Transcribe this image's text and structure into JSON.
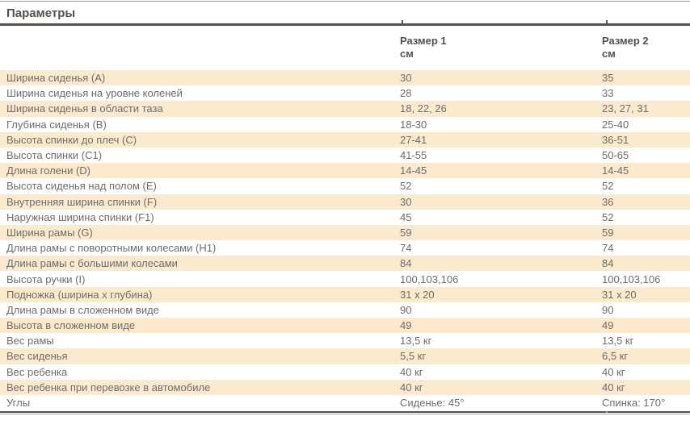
{
  "page": {
    "title": "Параметры"
  },
  "table": {
    "columns": [
      {
        "label": "Размер 1",
        "unit": "см"
      },
      {
        "label": "Размер 2",
        "unit": "см"
      }
    ],
    "rows": [
      {
        "label": "Ширина сиденья (A)",
        "size1": "30",
        "size2": "35"
      },
      {
        "label": "Ширина сиденья на уровне коленей",
        "size1": "28",
        "size2": "33"
      },
      {
        "label": "Ширина сиденья в области таза",
        "size1": "18, 22, 26",
        "size2": "23, 27, 31"
      },
      {
        "label": "Глубина сиденья (B)",
        "size1": "18-30",
        "size2": "25-40"
      },
      {
        "label": "Высота спинки до плеч (C)",
        "size1": "27-41",
        "size2": "36-51"
      },
      {
        "label": "Высота спинки (C1)",
        "size1": "41-55",
        "size2": "50-65"
      },
      {
        "label": "Длина голени (D)",
        "size1": "14-45",
        "size2": "14-45"
      },
      {
        "label": "Высота сиденья над полом (E)",
        "size1": "52",
        "size2": "52"
      },
      {
        "label": "Внутренняя ширина спинки (F)",
        "size1": "30",
        "size2": "36"
      },
      {
        "label": "Наружная ширина спинки (F1)",
        "size1": "45",
        "size2": "52"
      },
      {
        "label": "Ширина рамы (G)",
        "size1": "59",
        "size2": "59"
      },
      {
        "label": "Длина рамы с поворотными колесами (H1)",
        "size1": "74",
        "size2": "74"
      },
      {
        "label": "Длина рамы с большими колесами",
        "size1": "84",
        "size2": "84"
      },
      {
        "label": "Высота ручки (I)",
        "size1": "100,103,106",
        "size2": "100,103,106"
      },
      {
        "label": "Подножка (ширина x глубина)",
        "size1": "31 x 20",
        "size2": "31 x 20"
      },
      {
        "label": "Длина рамы в сложенном виде",
        "size1": "90",
        "size2": "90"
      },
      {
        "label": "Высота в сложенном виде",
        "size1": "49",
        "size2": "49"
      },
      {
        "label": "Вес рамы",
        "size1": "13,5 кг",
        "size2": "13,5 кг"
      },
      {
        "label": "Вес сиденья",
        "size1": "5,5 кг",
        "size2": "6,5 кг"
      },
      {
        "label": "Вес ребенка",
        "size1": "40 кг",
        "size2": "40 кг"
      },
      {
        "label": "Вес ребенка при перевозке в автомобиле",
        "size1": "40 кг",
        "size2": "40 кг"
      },
      {
        "label": "Углы",
        "size1": "Сиденье: 45°",
        "size2": "Спинка: 170°"
      }
    ],
    "colors": {
      "row_highlight": "#fceacf",
      "body_text": "#6f6c68",
      "heading_text": "#55504b",
      "rule_dark": "#57514b",
      "rule_light": "#9a988d"
    }
  }
}
